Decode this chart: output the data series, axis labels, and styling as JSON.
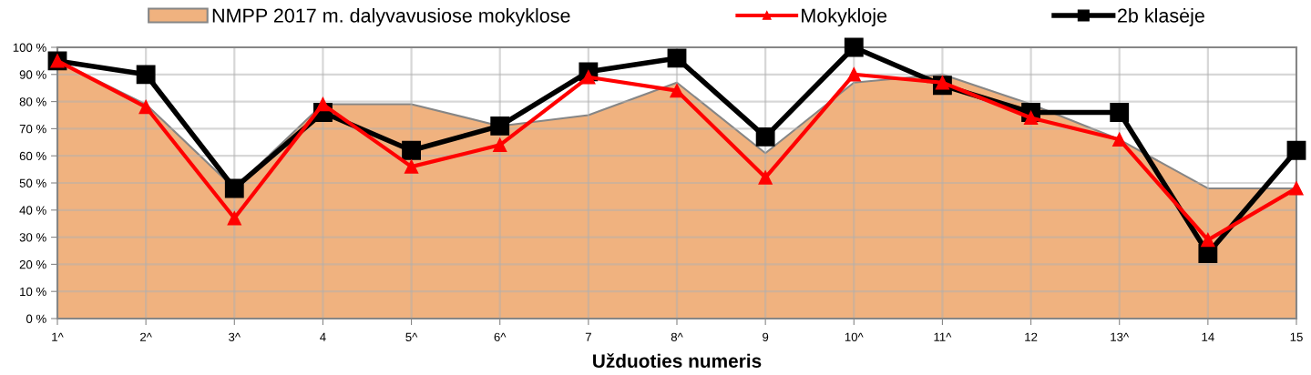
{
  "chart_data": {
    "type": "line",
    "xlabel": "Užduoties numeris",
    "categories": [
      "1^",
      "2^",
      "3^",
      "4",
      "5^",
      "6^",
      "7",
      "8^",
      "9",
      "10^",
      "11^",
      "12",
      "13^",
      "14",
      "15"
    ],
    "series": [
      {
        "name": "NMPP 2017 m. dalyvavusiose mokyklose",
        "type": "area",
        "color": "#f0b27f",
        "values": [
          95,
          79,
          48,
          79,
          79,
          71,
          75,
          87,
          61,
          87,
          90,
          79,
          66,
          48,
          48
        ]
      },
      {
        "name": "Mokykloje",
        "color": "#ff0000",
        "marker": "triangle",
        "values": [
          95,
          78,
          37,
          79,
          56,
          64,
          89,
          84,
          52,
          90,
          87,
          74,
          66,
          29,
          48
        ]
      },
      {
        "name": "2b klasėje",
        "color": "#000000",
        "marker": "square",
        "values": [
          95,
          90,
          48,
          76,
          62,
          71,
          91,
          96,
          67,
          100,
          86,
          76,
          76,
          24,
          62
        ]
      }
    ],
    "ylim": [
      0,
      100
    ],
    "yticks": [
      {
        "value": 0,
        "label": "0 %"
      },
      {
        "value": 10,
        "label": "10 %"
      },
      {
        "value": 20,
        "label": "20 %"
      },
      {
        "value": 30,
        "label": "30 %"
      },
      {
        "value": 40,
        "label": "40 %"
      },
      {
        "value": 50,
        "label": "50 %"
      },
      {
        "value": 60,
        "label": "60 %"
      },
      {
        "value": 70,
        "label": "70 %"
      },
      {
        "value": 80,
        "label": "80 %"
      },
      {
        "value": 90,
        "label": "90 %"
      },
      {
        "value": 100,
        "label": "100 %"
      }
    ],
    "grid": true,
    "legend": "top",
    "line_style": "solid"
  }
}
